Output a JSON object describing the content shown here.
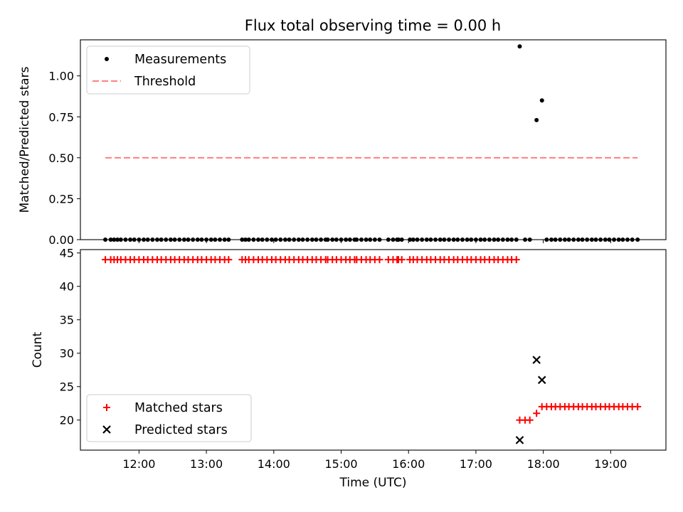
{
  "chart_data": [
    {
      "type": "scatter",
      "title": "Flux total observing time = 0.00 h",
      "xlabel": "",
      "ylabel": "Matched/Predicted stars",
      "ylim": [
        0,
        1.22
      ],
      "yticks": [
        "0.00",
        "0.25",
        "0.50",
        "0.75",
        "1.00"
      ],
      "grid": false,
      "legend": "top-left",
      "series": [
        {
          "name": "Measurements",
          "marker": "dot",
          "color": "#000000",
          "points": [
            [
              11.5,
              0
            ],
            [
              11.58,
              0
            ],
            [
              11.63,
              0
            ],
            [
              11.68,
              0
            ],
            [
              11.73,
              0
            ],
            [
              11.8,
              0
            ],
            [
              11.87,
              0
            ],
            [
              11.93,
              0
            ],
            [
              12.0,
              0
            ],
            [
              12.07,
              0
            ],
            [
              12.13,
              0
            ],
            [
              12.2,
              0
            ],
            [
              12.27,
              0
            ],
            [
              12.33,
              0
            ],
            [
              12.4,
              0
            ],
            [
              12.47,
              0
            ],
            [
              12.53,
              0
            ],
            [
              12.6,
              0
            ],
            [
              12.67,
              0
            ],
            [
              12.73,
              0
            ],
            [
              12.8,
              0
            ],
            [
              12.87,
              0
            ],
            [
              12.93,
              0
            ],
            [
              13.0,
              0
            ],
            [
              13.07,
              0
            ],
            [
              13.13,
              0
            ],
            [
              13.2,
              0
            ],
            [
              13.27,
              0
            ],
            [
              13.33,
              0
            ],
            [
              13.53,
              0
            ],
            [
              13.58,
              0
            ],
            [
              13.63,
              0
            ],
            [
              13.7,
              0
            ],
            [
              13.77,
              0
            ],
            [
              13.83,
              0
            ],
            [
              13.9,
              0
            ],
            [
              13.97,
              0
            ],
            [
              14.03,
              0
            ],
            [
              14.1,
              0
            ],
            [
              14.17,
              0
            ],
            [
              14.23,
              0
            ],
            [
              14.3,
              0
            ],
            [
              14.37,
              0
            ],
            [
              14.43,
              0
            ],
            [
              14.5,
              0
            ],
            [
              14.57,
              0
            ],
            [
              14.63,
              0
            ],
            [
              14.7,
              0
            ],
            [
              14.77,
              0
            ],
            [
              14.8,
              0
            ],
            [
              14.87,
              0
            ],
            [
              14.93,
              0
            ],
            [
              15.0,
              0
            ],
            [
              15.07,
              0
            ],
            [
              15.13,
              0
            ],
            [
              15.2,
              0
            ],
            [
              15.23,
              0
            ],
            [
              15.3,
              0
            ],
            [
              15.37,
              0
            ],
            [
              15.43,
              0
            ],
            [
              15.5,
              0
            ],
            [
              15.57,
              0
            ],
            [
              15.7,
              0
            ],
            [
              15.77,
              0
            ],
            [
              15.83,
              0
            ],
            [
              15.85,
              0
            ],
            [
              15.9,
              0
            ],
            [
              16.02,
              0
            ],
            [
              16.07,
              0
            ],
            [
              16.13,
              0
            ],
            [
              16.2,
              0
            ],
            [
              16.27,
              0
            ],
            [
              16.33,
              0
            ],
            [
              16.4,
              0
            ],
            [
              16.47,
              0
            ],
            [
              16.53,
              0
            ],
            [
              16.6,
              0
            ],
            [
              16.67,
              0
            ],
            [
              16.73,
              0
            ],
            [
              16.8,
              0
            ],
            [
              16.87,
              0
            ],
            [
              16.93,
              0
            ],
            [
              17.0,
              0
            ],
            [
              17.07,
              0
            ],
            [
              17.13,
              0
            ],
            [
              17.2,
              0
            ],
            [
              17.27,
              0
            ],
            [
              17.33,
              0
            ],
            [
              17.4,
              0
            ],
            [
              17.47,
              0
            ],
            [
              17.53,
              0
            ],
            [
              17.6,
              0
            ],
            [
              17.65,
              1.18
            ],
            [
              17.73,
              0
            ],
            [
              17.8,
              0
            ],
            [
              17.9,
              0.73
            ],
            [
              17.98,
              0.85
            ],
            [
              18.05,
              0
            ],
            [
              18.12,
              0
            ],
            [
              18.18,
              0
            ],
            [
              18.25,
              0
            ],
            [
              18.32,
              0
            ],
            [
              18.38,
              0
            ],
            [
              18.45,
              0
            ],
            [
              18.52,
              0
            ],
            [
              18.58,
              0
            ],
            [
              18.65,
              0
            ],
            [
              18.72,
              0
            ],
            [
              18.78,
              0
            ],
            [
              18.85,
              0
            ],
            [
              18.92,
              0
            ],
            [
              18.98,
              0
            ],
            [
              19.05,
              0
            ],
            [
              19.12,
              0
            ],
            [
              19.18,
              0
            ],
            [
              19.25,
              0
            ],
            [
              19.32,
              0
            ],
            [
              19.4,
              0
            ]
          ]
        },
        {
          "name": "Threshold",
          "marker": "dashed-line",
          "color": "#ff7f7f",
          "points": [
            [
              11.5,
              0.5
            ],
            [
              19.4,
              0.5
            ]
          ]
        }
      ]
    },
    {
      "type": "scatter",
      "title": "",
      "xlabel": "Time (UTC)",
      "ylabel": "Count",
      "xlim": [
        11.13,
        19.82
      ],
      "xticks": [
        "12:00",
        "13:00",
        "14:00",
        "15:00",
        "16:00",
        "17:00",
        "18:00",
        "19:00"
      ],
      "ylim": [
        15.5,
        45.5
      ],
      "yticks": [
        "20",
        "25",
        "30",
        "35",
        "40",
        "45"
      ],
      "grid": false,
      "legend": "bottom-left",
      "series": [
        {
          "name": "Matched stars",
          "marker": "plus",
          "color": "#ff0000",
          "points": [
            [
              11.5,
              44
            ],
            [
              11.58,
              44
            ],
            [
              11.63,
              44
            ],
            [
              11.68,
              44
            ],
            [
              11.73,
              44
            ],
            [
              11.8,
              44
            ],
            [
              11.87,
              44
            ],
            [
              11.93,
              44
            ],
            [
              12.0,
              44
            ],
            [
              12.07,
              44
            ],
            [
              12.13,
              44
            ],
            [
              12.2,
              44
            ],
            [
              12.27,
              44
            ],
            [
              12.33,
              44
            ],
            [
              12.4,
              44
            ],
            [
              12.47,
              44
            ],
            [
              12.53,
              44
            ],
            [
              12.6,
              44
            ],
            [
              12.67,
              44
            ],
            [
              12.73,
              44
            ],
            [
              12.8,
              44
            ],
            [
              12.87,
              44
            ],
            [
              12.93,
              44
            ],
            [
              13.0,
              44
            ],
            [
              13.07,
              44
            ],
            [
              13.13,
              44
            ],
            [
              13.2,
              44
            ],
            [
              13.27,
              44
            ],
            [
              13.33,
              44
            ],
            [
              13.53,
              44
            ],
            [
              13.58,
              44
            ],
            [
              13.63,
              44
            ],
            [
              13.7,
              44
            ],
            [
              13.77,
              44
            ],
            [
              13.83,
              44
            ],
            [
              13.9,
              44
            ],
            [
              13.97,
              44
            ],
            [
              14.03,
              44
            ],
            [
              14.1,
              44
            ],
            [
              14.17,
              44
            ],
            [
              14.23,
              44
            ],
            [
              14.3,
              44
            ],
            [
              14.37,
              44
            ],
            [
              14.43,
              44
            ],
            [
              14.5,
              44
            ],
            [
              14.57,
              44
            ],
            [
              14.63,
              44
            ],
            [
              14.7,
              44
            ],
            [
              14.77,
              44
            ],
            [
              14.8,
              44
            ],
            [
              14.87,
              44
            ],
            [
              14.93,
              44
            ],
            [
              15.0,
              44
            ],
            [
              15.07,
              44
            ],
            [
              15.13,
              44
            ],
            [
              15.2,
              44
            ],
            [
              15.23,
              44
            ],
            [
              15.3,
              44
            ],
            [
              15.37,
              44
            ],
            [
              15.43,
              44
            ],
            [
              15.5,
              44
            ],
            [
              15.57,
              44
            ],
            [
              15.7,
              44
            ],
            [
              15.77,
              44
            ],
            [
              15.83,
              44
            ],
            [
              15.85,
              44
            ],
            [
              15.9,
              44
            ],
            [
              16.02,
              44
            ],
            [
              16.07,
              44
            ],
            [
              16.13,
              44
            ],
            [
              16.2,
              44
            ],
            [
              16.27,
              44
            ],
            [
              16.33,
              44
            ],
            [
              16.4,
              44
            ],
            [
              16.47,
              44
            ],
            [
              16.53,
              44
            ],
            [
              16.6,
              44
            ],
            [
              16.67,
              44
            ],
            [
              16.73,
              44
            ],
            [
              16.8,
              44
            ],
            [
              16.87,
              44
            ],
            [
              16.93,
              44
            ],
            [
              17.0,
              44
            ],
            [
              17.07,
              44
            ],
            [
              17.13,
              44
            ],
            [
              17.2,
              44
            ],
            [
              17.27,
              44
            ],
            [
              17.33,
              44
            ],
            [
              17.4,
              44
            ],
            [
              17.47,
              44
            ],
            [
              17.53,
              44
            ],
            [
              17.6,
              44
            ],
            [
              17.65,
              20
            ],
            [
              17.73,
              20
            ],
            [
              17.8,
              20
            ],
            [
              17.9,
              21
            ],
            [
              17.98,
              22
            ],
            [
              18.05,
              22
            ],
            [
              18.12,
              22
            ],
            [
              18.18,
              22
            ],
            [
              18.25,
              22
            ],
            [
              18.32,
              22
            ],
            [
              18.38,
              22
            ],
            [
              18.45,
              22
            ],
            [
              18.52,
              22
            ],
            [
              18.58,
              22
            ],
            [
              18.65,
              22
            ],
            [
              18.72,
              22
            ],
            [
              18.78,
              22
            ],
            [
              18.85,
              22
            ],
            [
              18.92,
              22
            ],
            [
              18.98,
              22
            ],
            [
              19.05,
              22
            ],
            [
              19.12,
              22
            ],
            [
              19.18,
              22
            ],
            [
              19.25,
              22
            ],
            [
              19.32,
              22
            ],
            [
              19.4,
              22
            ]
          ]
        },
        {
          "name": "Predicted stars",
          "marker": "x",
          "color": "#000000",
          "points": [
            [
              17.65,
              17
            ],
            [
              17.9,
              29
            ],
            [
              17.98,
              26
            ]
          ]
        }
      ]
    }
  ]
}
